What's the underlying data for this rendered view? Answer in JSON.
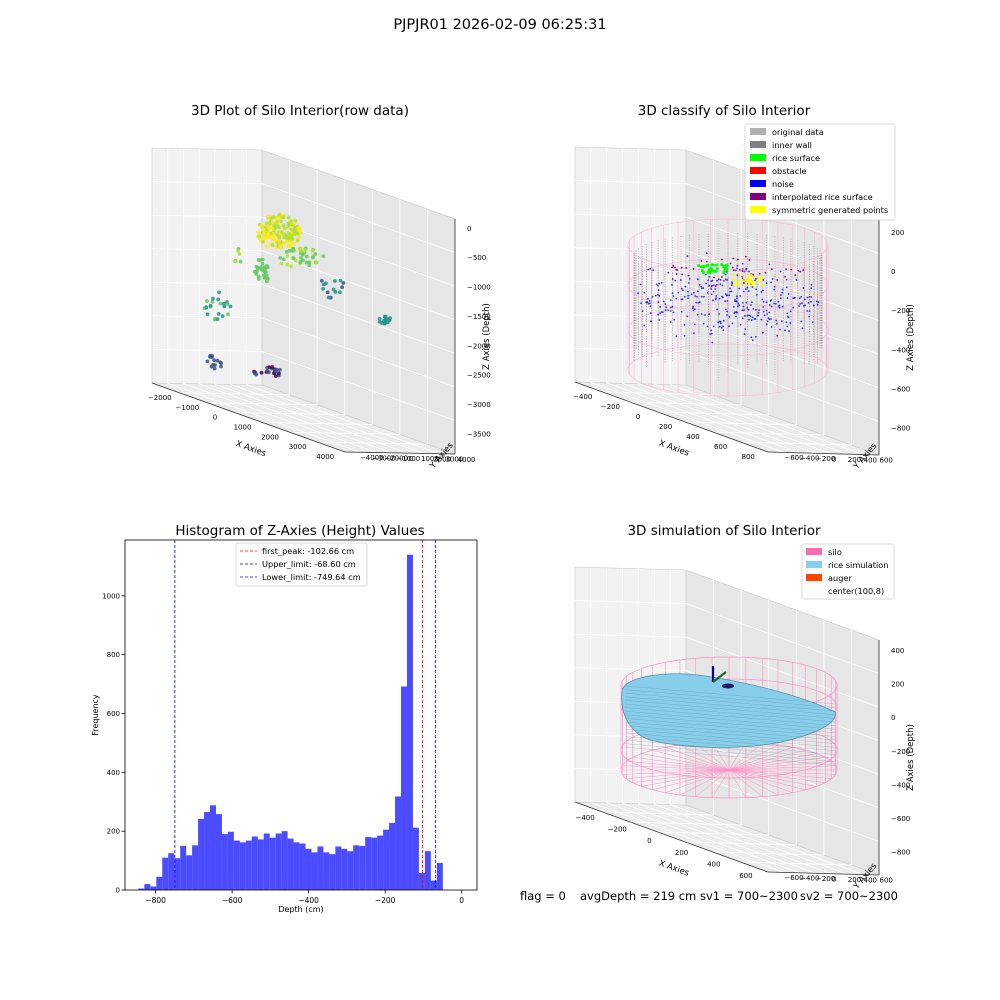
{
  "suptitle": "PJPJR01 2026-02-09 06:25:31",
  "panels": {
    "raw": {
      "title": "3D Plot of Silo Interior(row data)"
    },
    "classify": {
      "title": "3D classify of Silo Interior"
    },
    "hist": {
      "title": "Histogram of Z-Axies (Height) Values"
    },
    "sim": {
      "title": "3D simulation of Silo Interior"
    }
  },
  "status": {
    "flag": "flag = 0",
    "avg": "avgDepth = 219 cm",
    "sv1": "sv1 = 700~2300",
    "sv2": "sv2 = 700~2300"
  },
  "chart_data": [
    {
      "type": "scatter",
      "title": "3D Plot of Silo Interior(row data)",
      "xlabel": "X Axies",
      "ylabel": "Y Axies",
      "zlabel": "Z Axies (Depth)",
      "x_ticks": [
        "−2000",
        "−1000",
        "0",
        "1000",
        "2000",
        "3000",
        "4000"
      ],
      "y_ticks": [
        "−4000",
        "−3000",
        "−2000",
        "−1000",
        "0",
        "1000",
        "2000",
        "3000",
        "4000"
      ],
      "z_ticks": [
        "0",
        "−500",
        "−1000",
        "−1500",
        "−2000",
        "−2500",
        "−3000",
        "−3500"
      ],
      "colormap": "viridis"
    },
    {
      "type": "scatter",
      "title": "3D classify of Silo Interior",
      "xlabel": "X Axies",
      "ylabel": "Y Axies",
      "zlabel": "Z Axies (Depth)",
      "x_ticks": [
        "−400",
        "−200",
        "0",
        "200",
        "400",
        "600",
        "800"
      ],
      "y_ticks": [
        "−600",
        "−400",
        "−200",
        "0",
        "200",
        "400",
        "600"
      ],
      "z_ticks": [
        "200",
        "0",
        "−200",
        "−400",
        "−600",
        "−800"
      ],
      "legend": [
        {
          "label": "original data",
          "color": "#b0b0b0"
        },
        {
          "label": "inner wall",
          "color": "#808080"
        },
        {
          "label": "rice surface",
          "color": "#00ff00"
        },
        {
          "label": "obstacle",
          "color": "#ff0000"
        },
        {
          "label": "noise",
          "color": "#0000ff"
        },
        {
          "label": "interpolated rice surface",
          "color": "#800080"
        },
        {
          "label": "symmetric generated points",
          "color": "#ffff00"
        }
      ]
    },
    {
      "type": "bar",
      "title": "Histogram of Z-Axies (Height) Values",
      "xlabel": "Depth (cm)",
      "ylabel": "Frequency",
      "xlim": [
        -880,
        40
      ],
      "ylim": [
        0,
        1190
      ],
      "x_ticks": [
        -800,
        -600,
        -400,
        -200,
        0
      ],
      "x_tick_labels": [
        "−800",
        "−600",
        "−400",
        "−200",
        "0"
      ],
      "y_ticks": [
        0,
        200,
        400,
        600,
        800,
        1000
      ],
      "bin_start": -845,
      "bin_width": 15.6,
      "values": [
        5,
        20,
        12,
        45,
        110,
        125,
        108,
        150,
        118,
        152,
        242,
        265,
        288,
        258,
        190,
        198,
        168,
        162,
        168,
        182,
        172,
        192,
        178,
        192,
        200,
        175,
        162,
        158,
        140,
        128,
        148,
        128,
        122,
        148,
        140,
        132,
        152,
        150,
        180,
        178,
        185,
        205,
        228,
        318,
        692,
        1140,
        212,
        58,
        132,
        32,
        92
      ],
      "bar_color": "#0000ff",
      "vlines": [
        {
          "label": "first_peak: -102.66 cm",
          "x": -102.66,
          "color": "#ff0000"
        },
        {
          "label": "Upper_limit: -68.60 cm",
          "x": -68.6,
          "color": "#0000ff"
        },
        {
          "label": "Lower_limit: -749.64 cm",
          "x": -749.64,
          "color": "#0000ff"
        }
      ],
      "legend_position": "top-center"
    },
    {
      "type": "area",
      "title": "3D simulation of Silo Interior",
      "xlabel": "X Axies",
      "ylabel": "Y Axies",
      "zlabel": "Z Axies (Depth)",
      "x_ticks": [
        "−400",
        "−200",
        "0",
        "200",
        "400",
        "600"
      ],
      "y_ticks": [
        "−600",
        "−400",
        "−200",
        "0",
        "200",
        "400",
        "600"
      ],
      "z_ticks": [
        "400",
        "200",
        "0",
        "−200",
        "−400",
        "−600",
        "−800"
      ],
      "legend": [
        {
          "label": "silo",
          "color": "#ff69b4"
        },
        {
          "label": "rice simulation",
          "color": "#87ceeb"
        },
        {
          "label": "auger",
          "color": "#ff4500"
        },
        {
          "label": "center(100,8)",
          "color": "#ffffff"
        }
      ]
    }
  ]
}
